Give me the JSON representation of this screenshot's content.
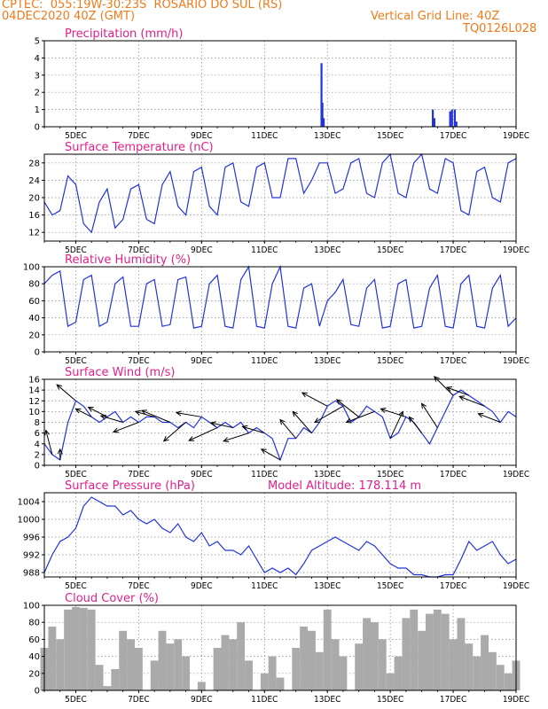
{
  "header": {
    "line1": "CPTEC:  055:19W-30:23S  ROSARIO DO SUL (RS)",
    "line2": "04DEC2020 40Z (GMT)",
    "grid_note": "Vertical Grid Line: 40Z",
    "code": "TQ0126L028"
  },
  "colors": {
    "series": "#2233dd",
    "bars": "#aaaaaa",
    "title": "#e0208a",
    "header": "#f07a1a",
    "grid": "#888888"
  },
  "chart_data": [
    {
      "id": "precip",
      "type": "bar",
      "title": "Precipitation (mm/h)",
      "x_unit": "day of December 2020",
      "xlim": [
        4,
        19
      ],
      "ylim": [
        0,
        5
      ],
      "yticks": [
        0,
        1,
        2,
        3,
        4,
        5
      ],
      "xticks": [
        5,
        7,
        9,
        11,
        13,
        15,
        17,
        19
      ],
      "xtick_labels": [
        "5DEC",
        "7DEC",
        "9DEC",
        "11DEC",
        "13DEC",
        "15DEC",
        "17DEC",
        "19DEC"
      ],
      "x": [
        12.81,
        12.84,
        12.88,
        16.35,
        16.4,
        16.9,
        16.96,
        17.05,
        17.1
      ],
      "values": [
        3.7,
        1.4,
        0.5,
        1.0,
        0.5,
        0.9,
        1.0,
        1.0,
        0.3
      ],
      "grid": true
    },
    {
      "id": "temp",
      "type": "line",
      "title": "Surface Temperature (nC)",
      "x_unit": "day of December 2020",
      "xlim": [
        4,
        19
      ],
      "ylim": [
        10,
        30
      ],
      "yticks": [
        12,
        16,
        20,
        24,
        28
      ],
      "xticks": [
        5,
        7,
        9,
        11,
        13,
        15,
        17,
        19
      ],
      "xtick_labels": [
        "5DEC",
        "7DEC",
        "9DEC",
        "11DEC",
        "13DEC",
        "15DEC",
        "17DEC",
        "19DEC"
      ],
      "x": [
        4.0,
        4.25,
        4.5,
        4.75,
        5.0,
        5.25,
        5.5,
        5.75,
        6.0,
        6.25,
        6.5,
        6.75,
        7.0,
        7.25,
        7.5,
        7.75,
        8.0,
        8.25,
        8.5,
        8.75,
        9.0,
        9.25,
        9.5,
        9.75,
        10.0,
        10.25,
        10.5,
        10.75,
        11.0,
        11.25,
        11.5,
        11.75,
        12.0,
        12.25,
        12.5,
        12.75,
        13.0,
        13.25,
        13.5,
        13.75,
        14.0,
        14.25,
        14.5,
        14.75,
        15.0,
        15.25,
        15.5,
        15.75,
        16.0,
        16.25,
        16.5,
        16.75,
        17.0,
        17.25,
        17.5,
        17.75,
        18.0,
        18.25,
        18.5,
        18.75,
        19.0
      ],
      "values": [
        19,
        16,
        17,
        25,
        23,
        14,
        12,
        19,
        22,
        13,
        15,
        22,
        23,
        15,
        14,
        23,
        26,
        18,
        16,
        26,
        27,
        18,
        16,
        27,
        28,
        19,
        18,
        27,
        28,
        20,
        20,
        29,
        29,
        21,
        24,
        28,
        28,
        21,
        22,
        28,
        29,
        21,
        20,
        28,
        30,
        21,
        20,
        28,
        30,
        22,
        21,
        29,
        28,
        17,
        16,
        26,
        27,
        20,
        19,
        28,
        29
      ],
      "grid": true
    },
    {
      "id": "rh",
      "type": "line",
      "title": "Relative Humidity (%)",
      "x_unit": "day of December 2020",
      "xlim": [
        4,
        19
      ],
      "ylim": [
        0,
        100
      ],
      "yticks": [
        0,
        20,
        40,
        60,
        80,
        100
      ],
      "xticks": [
        5,
        7,
        9,
        11,
        13,
        15,
        17,
        19
      ],
      "xtick_labels": [
        "5DEC",
        "7DEC",
        "9DEC",
        "11DEC",
        "13DEC",
        "15DEC",
        "17DEC",
        "19DEC"
      ],
      "x": [
        4.0,
        4.25,
        4.5,
        4.75,
        5.0,
        5.25,
        5.5,
        5.75,
        6.0,
        6.25,
        6.5,
        6.75,
        7.0,
        7.25,
        7.5,
        7.75,
        8.0,
        8.25,
        8.5,
        8.75,
        9.0,
        9.25,
        9.5,
        9.75,
        10.0,
        10.25,
        10.5,
        10.75,
        11.0,
        11.25,
        11.5,
        11.75,
        12.0,
        12.25,
        12.5,
        12.75,
        13.0,
        13.25,
        13.5,
        13.75,
        14.0,
        14.25,
        14.5,
        14.75,
        15.0,
        15.25,
        15.5,
        15.75,
        16.0,
        16.25,
        16.5,
        16.75,
        17.0,
        17.25,
        17.5,
        17.75,
        18.0,
        18.25,
        18.5,
        18.75,
        19.0
      ],
      "values": [
        80,
        90,
        95,
        30,
        35,
        85,
        90,
        30,
        35,
        80,
        88,
        30,
        30,
        80,
        85,
        30,
        32,
        85,
        88,
        28,
        30,
        80,
        90,
        30,
        28,
        85,
        100,
        30,
        28,
        80,
        100,
        30,
        28,
        75,
        80,
        30,
        60,
        70,
        85,
        32,
        30,
        75,
        85,
        28,
        30,
        80,
        85,
        28,
        30,
        75,
        90,
        30,
        28,
        80,
        90,
        30,
        28,
        75,
        90,
        30,
        40
      ],
      "grid": true
    },
    {
      "id": "wind",
      "type": "line",
      "title": "Surface Wind (m/s)",
      "x_unit": "day of December 2020",
      "xlim": [
        4,
        19
      ],
      "ylim": [
        0,
        16
      ],
      "yticks": [
        0,
        2,
        4,
        6,
        8,
        10,
        12,
        14,
        16
      ],
      "xticks": [
        5,
        7,
        9,
        11,
        13,
        15,
        17,
        19
      ],
      "xtick_labels": [
        "5DEC",
        "7DEC",
        "9DEC",
        "11DEC",
        "13DEC",
        "15DEC",
        "17DEC",
        "19DEC"
      ],
      "x": [
        4.0,
        4.25,
        4.5,
        4.75,
        5.0,
        5.25,
        5.5,
        5.75,
        6.0,
        6.25,
        6.5,
        6.75,
        7.0,
        7.25,
        7.5,
        7.75,
        8.0,
        8.25,
        8.5,
        8.75,
        9.0,
        9.25,
        9.5,
        9.75,
        10.0,
        10.25,
        10.5,
        10.75,
        11.0,
        11.25,
        11.5,
        11.75,
        12.0,
        12.25,
        12.5,
        12.75,
        13.0,
        13.25,
        13.5,
        13.75,
        14.0,
        14.25,
        14.5,
        14.75,
        15.0,
        15.25,
        15.5,
        15.75,
        16.0,
        16.25,
        16.5,
        16.75,
        17.0,
        17.25,
        17.5,
        17.75,
        18.0,
        18.25,
        18.5,
        18.75,
        19.0
      ],
      "values": [
        4,
        2,
        1,
        8,
        12,
        11,
        9,
        8,
        9,
        10,
        8,
        9,
        8,
        9,
        9,
        8,
        8,
        7,
        8,
        7,
        9,
        8,
        7,
        8,
        7,
        8,
        6,
        7,
        6,
        5,
        1,
        5,
        5,
        7,
        6,
        8,
        11,
        12,
        11,
        8,
        9,
        11,
        10,
        9,
        5,
        6,
        9,
        8,
        6,
        4,
        7,
        10,
        13,
        14,
        13,
        12,
        11,
        10,
        8,
        10,
        9
      ],
      "wind_dirs": [
        {
          "x": 4.25,
          "dx": -0.2,
          "dy": 4.5
        },
        {
          "x": 4.5,
          "dx": 0.0,
          "dy": 2.0
        },
        {
          "x": 5.0,
          "dx": -0.6,
          "dy": 3.0
        },
        {
          "x": 5.5,
          "dx": -0.5,
          "dy": 1.5
        },
        {
          "x": 6.0,
          "dx": -0.6,
          "dy": 1.8
        },
        {
          "x": 6.5,
          "dx": -0.7,
          "dy": 1.2
        },
        {
          "x": 7.0,
          "dx": -0.8,
          "dy": -1.8
        },
        {
          "x": 7.5,
          "dx": -0.6,
          "dy": 1.0
        },
        {
          "x": 8.0,
          "dx": -0.9,
          "dy": 2.2
        },
        {
          "x": 8.5,
          "dx": -0.7,
          "dy": -3.5
        },
        {
          "x": 9.0,
          "dx": -0.8,
          "dy": 0.8
        },
        {
          "x": 9.5,
          "dx": -0.9,
          "dy": -2.4
        },
        {
          "x": 10.0,
          "dx": -0.7,
          "dy": 0.9
        },
        {
          "x": 10.5,
          "dx": -0.8,
          "dy": -1.5
        },
        {
          "x": 11.0,
          "dx": -0.7,
          "dy": 1.2
        },
        {
          "x": 11.5,
          "dx": -0.6,
          "dy": 2.0
        },
        {
          "x": 12.0,
          "dx": -0.5,
          "dy": 3.5
        },
        {
          "x": 12.5,
          "dx": -0.6,
          "dy": 4.0
        },
        {
          "x": 13.0,
          "dx": -0.8,
          "dy": 2.5
        },
        {
          "x": 13.5,
          "dx": -0.9,
          "dy": -3.0
        },
        {
          "x": 14.0,
          "dx": -0.7,
          "dy": 3.2
        },
        {
          "x": 14.5,
          "dx": -0.9,
          "dy": -2.0
        },
        {
          "x": 15.0,
          "dx": 0.4,
          "dy": 5.0
        },
        {
          "x": 15.5,
          "dx": -0.8,
          "dy": 1.5
        },
        {
          "x": 16.0,
          "dx": -0.4,
          "dy": 3.0
        },
        {
          "x": 16.5,
          "dx": -0.5,
          "dy": 4.5
        },
        {
          "x": 17.0,
          "dx": -0.6,
          "dy": 3.5
        },
        {
          "x": 17.5,
          "dx": -0.7,
          "dy": 1.5
        },
        {
          "x": 18.0,
          "dx": -0.8,
          "dy": 1.8
        },
        {
          "x": 18.5,
          "dx": -0.7,
          "dy": 1.6
        }
      ],
      "grid": true
    },
    {
      "id": "pres",
      "type": "line",
      "title": "Surface Pressure (hPa)",
      "subtitle": "Model Altitude: 178.114 m",
      "x_unit": "day of December 2020",
      "xlim": [
        4,
        19
      ],
      "ylim": [
        987,
        1006
      ],
      "yticks": [
        988,
        992,
        996,
        1000,
        1004
      ],
      "xticks": [
        5,
        7,
        9,
        11,
        13,
        15,
        17,
        19
      ],
      "xtick_labels": [
        "5DEC",
        "7DEC",
        "9DEC",
        "11DEC",
        "13DEC",
        "15DEC",
        "17DEC",
        "19DEC"
      ],
      "x": [
        4.0,
        4.25,
        4.5,
        4.75,
        5.0,
        5.25,
        5.5,
        5.75,
        6.0,
        6.25,
        6.5,
        6.75,
        7.0,
        7.25,
        7.5,
        7.75,
        8.0,
        8.25,
        8.5,
        8.75,
        9.0,
        9.25,
        9.5,
        9.75,
        10.0,
        10.25,
        10.5,
        10.75,
        11.0,
        11.25,
        11.5,
        11.75,
        12.0,
        12.25,
        12.5,
        12.75,
        13.0,
        13.25,
        13.5,
        13.75,
        14.0,
        14.25,
        14.5,
        14.75,
        15.0,
        15.25,
        15.5,
        15.75,
        16.0,
        16.25,
        16.5,
        16.75,
        17.0,
        17.25,
        17.5,
        17.75,
        18.0,
        18.25,
        18.5,
        18.75,
        19.0
      ],
      "values": [
        988,
        992,
        995,
        996,
        998,
        1003,
        1005,
        1004,
        1003,
        1003,
        1001,
        1002,
        1000,
        999,
        1000,
        998,
        997,
        999,
        996,
        995,
        997,
        994,
        995,
        993,
        993,
        992,
        994,
        991,
        988,
        989,
        988,
        989,
        987.5,
        990,
        993,
        994,
        995,
        996,
        995,
        994,
        993,
        995,
        994,
        992,
        990,
        989,
        989,
        987.5,
        987.5,
        987,
        987,
        987.5,
        987.5,
        991,
        995,
        993,
        994,
        995,
        992,
        990,
        991
      ],
      "grid": true
    },
    {
      "id": "cloud",
      "type": "bar",
      "title": "Cloud Cover (%)",
      "x_unit": "day of December 2020",
      "xlim": [
        4,
        19
      ],
      "ylim": [
        0,
        100
      ],
      "yticks": [
        0,
        20,
        40,
        60,
        80,
        100
      ],
      "xticks": [
        5,
        7,
        9,
        11,
        13,
        15,
        17,
        19
      ],
      "xtick_labels": [
        "5DEC",
        "7DEC",
        "9DEC",
        "11DEC",
        "13DEC",
        "15DEC",
        "17DEC",
        "19DEC"
      ],
      "x": [
        4.0,
        4.25,
        4.5,
        4.75,
        5.0,
        5.25,
        5.5,
        5.75,
        6.0,
        6.25,
        6.5,
        6.75,
        7.0,
        7.25,
        7.5,
        7.75,
        8.0,
        8.25,
        8.5,
        8.75,
        9.0,
        9.25,
        9.5,
        9.75,
        10.0,
        10.25,
        10.5,
        10.75,
        11.0,
        11.25,
        11.5,
        11.75,
        12.0,
        12.25,
        12.5,
        12.75,
        13.0,
        13.25,
        13.5,
        13.75,
        14.0,
        14.25,
        14.5,
        14.75,
        15.0,
        15.25,
        15.5,
        15.75,
        16.0,
        16.25,
        16.5,
        16.75,
        17.0,
        17.25,
        17.5,
        17.75,
        18.0,
        18.25,
        18.5,
        18.75,
        19.0
      ],
      "values": [
        50,
        75,
        60,
        95,
        98,
        97,
        95,
        30,
        5,
        25,
        70,
        60,
        50,
        0,
        35,
        70,
        55,
        60,
        40,
        0,
        10,
        0,
        50,
        65,
        60,
        80,
        35,
        0,
        20,
        40,
        15,
        0,
        50,
        75,
        70,
        45,
        95,
        60,
        40,
        0,
        55,
        85,
        80,
        60,
        20,
        40,
        85,
        95,
        70,
        90,
        95,
        90,
        60,
        85,
        55,
        40,
        65,
        45,
        30,
        20,
        35
      ],
      "grid": true
    }
  ]
}
